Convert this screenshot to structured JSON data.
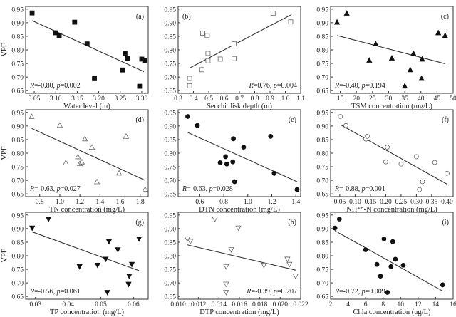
{
  "chart_data": [
    {
      "type": "scatter",
      "panel": "(a)",
      "marker": "square-filled",
      "xlabel": "Water level (m)",
      "ylabel": "VPF",
      "xlim": [
        3.03,
        3.315
      ],
      "ylim": [
        0.64,
        0.96
      ],
      "xticks": [
        3.05,
        3.1,
        3.15,
        3.2,
        3.25,
        3.3
      ],
      "xtick_labels": [
        "3.05",
        "3.10",
        "3.15",
        "3.20",
        "3.25",
        "3.30"
      ],
      "points": [
        [
          3.045,
          0.936
        ],
        [
          3.1,
          0.863
        ],
        [
          3.108,
          0.852
        ],
        [
          3.144,
          0.902
        ],
        [
          3.173,
          0.822
        ],
        [
          3.19,
          0.694
        ],
        [
          3.256,
          0.726
        ],
        [
          3.261,
          0.787
        ],
        [
          3.267,
          0.769
        ],
        [
          3.295,
          0.666
        ],
        [
          3.3,
          0.766
        ],
        [
          3.307,
          0.761
        ]
      ],
      "fit": [
        [
          3.045,
          0.908
        ],
        [
          3.305,
          0.72
        ]
      ],
      "R": "-0.80",
      "p": "0.002",
      "annotation_pos": "bottom-left",
      "label_pos": "top-right"
    },
    {
      "type": "scatter",
      "panel": "(b)",
      "marker": "square-open",
      "xlabel": "Secchi disk depth (m)",
      "ylabel": "",
      "xlim": [
        0.3,
        1.1
      ],
      "ylim": [
        0.64,
        0.96
      ],
      "xticks": [
        0.3,
        0.4,
        0.5,
        0.6,
        0.7,
        0.8,
        0.9,
        1.0,
        1.1
      ],
      "xtick_labels": [
        "0.3",
        "0.4",
        "0.5",
        "0.6",
        "0.7",
        "0.8",
        "0.9",
        "1.0",
        "1.1"
      ],
      "points": [
        [
          0.375,
          0.695
        ],
        [
          0.375,
          0.668
        ],
        [
          0.455,
          0.727
        ],
        [
          0.46,
          0.862
        ],
        [
          0.49,
          0.853
        ],
        [
          0.495,
          0.787
        ],
        [
          0.495,
          0.76
        ],
        [
          0.575,
          0.766
        ],
        [
          0.665,
          0.822
        ],
        [
          0.665,
          0.768
        ],
        [
          0.92,
          0.935
        ],
        [
          1.035,
          0.903
        ]
      ],
      "fit": [
        [
          0.375,
          0.733
        ],
        [
          1.04,
          0.93
        ]
      ],
      "R": "0.76",
      "p": "0.004",
      "annotation_pos": "bottom-right",
      "label_pos": "top-left"
    },
    {
      "type": "scatter",
      "panel": "(c)",
      "marker": "triangle-up-filled",
      "xlabel": "TSM concentration (mg/L)",
      "ylabel": "",
      "xlim": [
        12,
        50
      ],
      "ylim": [
        0.64,
        0.96
      ],
      "xticks": [
        15,
        20,
        25,
        30,
        35,
        40,
        45,
        50
      ],
      "xtick_labels": [
        "15",
        "20",
        "25",
        "30",
        "35",
        "40",
        "45",
        "50"
      ],
      "points": [
        [
          14,
          0.902
        ],
        [
          17,
          0.935
        ],
        [
          24,
          0.762
        ],
        [
          26,
          0.822
        ],
        [
          31,
          0.77
        ],
        [
          35,
          0.667
        ],
        [
          36.7,
          0.727
        ],
        [
          37.7,
          0.787
        ],
        [
          40.2,
          0.695
        ],
        [
          40.4,
          0.766
        ],
        [
          45.4,
          0.863
        ],
        [
          47.5,
          0.853
        ]
      ],
      "fit": [
        [
          14,
          0.853
        ],
        [
          47.5,
          0.749
        ]
      ],
      "R": "-0.40",
      "p": "0.194",
      "annotation_pos": "bottom-left",
      "label_pos": "top-right"
    },
    {
      "type": "scatter",
      "panel": "(d)",
      "marker": "triangle-up-open",
      "xlabel": "TN concentration (mg/L)",
      "ylabel": "VPF",
      "xlim": [
        0.66,
        1.88
      ],
      "ylim": [
        0.64,
        0.96
      ],
      "xticks": [
        0.8,
        1.0,
        1.2,
        1.4,
        1.6,
        1.8
      ],
      "xtick_labels": [
        "0.8",
        "1.0",
        "1.2",
        "1.4",
        "1.6",
        "1.8"
      ],
      "points": [
        [
          0.72,
          0.935
        ],
        [
          1.0,
          0.903
        ],
        [
          1.06,
          0.765
        ],
        [
          1.18,
          0.787
        ],
        [
          1.2,
          0.762
        ],
        [
          1.22,
          0.768
        ],
        [
          1.25,
          0.853
        ],
        [
          1.32,
          0.822
        ],
        [
          1.37,
          0.695
        ],
        [
          1.59,
          0.727
        ],
        [
          1.66,
          0.862
        ],
        [
          1.85,
          0.667
        ]
      ],
      "fit": [
        [
          0.72,
          0.891
        ],
        [
          1.85,
          0.7
        ]
      ],
      "R": "-0.63",
      "p": "0.027",
      "annotation_pos": "bottom-left",
      "label_pos": "top-right"
    },
    {
      "type": "scatter",
      "panel": "(e)",
      "marker": "circle-filled",
      "xlabel": "DTN concentration (mg/L)",
      "ylabel": "",
      "xlim": [
        0.42,
        1.44
      ],
      "ylim": [
        0.64,
        0.96
      ],
      "xticks": [
        0.6,
        0.8,
        1.0,
        1.2,
        1.4
      ],
      "xtick_labels": [
        "0.6",
        "0.8",
        "1.0",
        "1.2",
        "1.4"
      ],
      "points": [
        [
          0.5,
          0.935
        ],
        [
          0.58,
          0.902
        ],
        [
          0.77,
          0.765
        ],
        [
          0.815,
          0.787
        ],
        [
          0.825,
          0.76
        ],
        [
          0.875,
          0.768
        ],
        [
          0.88,
          0.853
        ],
        [
          0.89,
          0.695
        ],
        [
          0.965,
          0.822
        ],
        [
          1.19,
          0.862
        ],
        [
          1.22,
          0.726
        ],
        [
          1.41,
          0.666
        ]
      ],
      "fit": [
        [
          0.5,
          0.876
        ],
        [
          1.41,
          0.695
        ]
      ],
      "R": "-0.63",
      "p": "0.028",
      "annotation_pos": "bottom-left",
      "label_pos": "top-right"
    },
    {
      "type": "scatter",
      "panel": "(f)",
      "marker": "circle-open",
      "xlabel": "NH⁴⁺-N concentration (mg/L)",
      "ylabel": "",
      "xlim": [
        0.02,
        0.42
      ],
      "ylim": [
        0.64,
        0.96
      ],
      "xticks": [
        0.05,
        0.1,
        0.15,
        0.2,
        0.25,
        0.3,
        0.35,
        0.4
      ],
      "xtick_labels": [
        "0.05",
        "0.10",
        "0.15",
        "0.20",
        "0.25",
        "0.30",
        "0.35",
        "0.40"
      ],
      "points": [
        [
          0.052,
          0.935
        ],
        [
          0.07,
          0.902
        ],
        [
          0.135,
          0.852
        ],
        [
          0.14,
          0.862
        ],
        [
          0.2,
          0.768
        ],
        [
          0.205,
          0.822
        ],
        [
          0.25,
          0.76
        ],
        [
          0.3,
          0.787
        ],
        [
          0.31,
          0.666
        ],
        [
          0.32,
          0.695
        ],
        [
          0.36,
          0.766
        ],
        [
          0.4,
          0.726
        ]
      ],
      "fit": [
        [
          0.052,
          0.905
        ],
        [
          0.4,
          0.686
        ]
      ],
      "R": "-0.88",
      "p": "0.001",
      "annotation_pos": "bottom-left",
      "label_pos": "top-right"
    },
    {
      "type": "scatter",
      "panel": "(g)",
      "marker": "triangle-down-filled",
      "xlabel": "TP concentration (mg/L)",
      "ylabel": "VPF",
      "xlim": [
        0.027,
        0.0645
      ],
      "ylim": [
        0.64,
        0.96
      ],
      "xticks": [
        0.03,
        0.04,
        0.05,
        0.06
      ],
      "xtick_labels": [
        "0.03",
        "0.04",
        "0.05",
        "0.06"
      ],
      "points": [
        [
          0.029,
          0.902
        ],
        [
          0.034,
          0.935
        ],
        [
          0.0435,
          0.76
        ],
        [
          0.049,
          0.765
        ],
        [
          0.0515,
          0.787
        ],
        [
          0.052,
          0.665
        ],
        [
          0.0525,
          0.852
        ],
        [
          0.0552,
          0.822
        ],
        [
          0.0585,
          0.695
        ],
        [
          0.0587,
          0.725
        ],
        [
          0.0595,
          0.768
        ],
        [
          0.0617,
          0.862
        ]
      ],
      "fit": [
        [
          0.029,
          0.888
        ],
        [
          0.0617,
          0.745
        ]
      ],
      "R": "-0.56",
      "p": "0.061",
      "annotation_pos": "bottom-left",
      "label_pos": "top-right"
    },
    {
      "type": "scatter",
      "panel": "(h)",
      "marker": "triangle-down-open",
      "xlabel": "DTP concentration (mg/L)",
      "ylabel": "",
      "xlim": [
        0.01,
        0.022
      ],
      "ylim": [
        0.64,
        0.96
      ],
      "xticks": [
        0.01,
        0.012,
        0.014,
        0.016,
        0.018,
        0.02,
        0.022
      ],
      "xtick_labels": [
        "0.010",
        "0.012",
        "0.014",
        "0.016",
        "0.018",
        "0.020",
        "0.022"
      ],
      "points": [
        [
          0.0109,
          0.862
        ],
        [
          0.0112,
          0.853
        ],
        [
          0.0136,
          0.935
        ],
        [
          0.0147,
          0.76
        ],
        [
          0.0147,
          0.695
        ],
        [
          0.0147,
          0.665
        ],
        [
          0.0152,
          0.822
        ],
        [
          0.0159,
          0.902
        ],
        [
          0.0184,
          0.765
        ],
        [
          0.0207,
          0.787
        ],
        [
          0.0209,
          0.768
        ],
        [
          0.0215,
          0.725
        ]
      ],
      "fit": [
        [
          0.0109,
          0.84
        ],
        [
          0.0215,
          0.747
        ]
      ],
      "R": "-0.39",
      "p": "0.207",
      "annotation_pos": "bottom-right",
      "label_pos": "top-right"
    },
    {
      "type": "scatter",
      "panel": "(i)",
      "marker": "circle-filled",
      "xlabel": "Chla concentration (ug/L)",
      "ylabel": "",
      "xlim": [
        2,
        16
      ],
      "ylim": [
        0.64,
        0.96
      ],
      "xticks": [
        2,
        4,
        6,
        8,
        10,
        12,
        14,
        16
      ],
      "xtick_labels": [
        "2",
        "4",
        "6",
        "8",
        "10",
        "12",
        "14",
        "16"
      ],
      "points": [
        [
          2.5,
          0.902
        ],
        [
          3.0,
          0.935
        ],
        [
          6.0,
          0.822
        ],
        [
          7.3,
          0.768
        ],
        [
          7.7,
          0.725
        ],
        [
          8.1,
          0.862
        ],
        [
          8.5,
          0.665
        ],
        [
          8.9,
          0.76
        ],
        [
          9.1,
          0.852
        ],
        [
          9.4,
          0.787
        ],
        [
          10.3,
          0.765
        ],
        [
          14.8,
          0.693
        ]
      ],
      "fit": [
        [
          2.5,
          0.892
        ],
        [
          14.8,
          0.67
        ]
      ],
      "R": "-0.72",
      "p": "0.009",
      "annotation_pos": "bottom-left",
      "label_pos": "top-right"
    }
  ],
  "yticks": [
    0.65,
    0.7,
    0.75,
    0.8,
    0.85,
    0.9,
    0.95
  ],
  "ytick_labels": [
    "0.65",
    "0.70",
    "0.75",
    "0.80",
    "0.85",
    "0.90",
    "0.95"
  ],
  "r_symbol": "R",
  "p_symbol": "p",
  "colors": {
    "axis": "#333333",
    "marker": "#111111",
    "fit": "#333333"
  }
}
